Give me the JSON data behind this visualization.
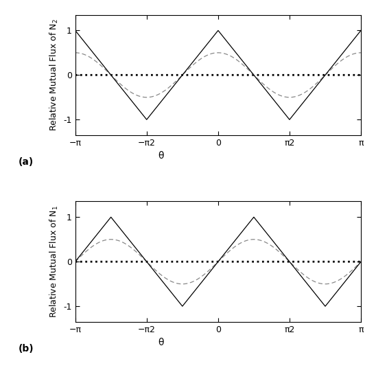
{
  "ylabel_a": "Relative Mutual Flux of N$_2$",
  "ylabel_b": "Relative Mutual Flux of N$_1$",
  "xlabel": "θ",
  "label_a": "(a)",
  "label_b": "(b)",
  "xlim": [
    -3.14159265,
    3.14159265
  ],
  "ylim": [
    -1.35,
    1.35
  ],
  "yticks": [
    -1,
    0,
    1
  ],
  "xticks": [
    -3.14159265,
    -1.5707963,
    0,
    1.5707963,
    3.14159265
  ],
  "xticklabels_a": [
    "−π",
    "−π2",
    "0",
    "π2",
    "π"
  ],
  "xticklabels_b": [
    "−π",
    "−π2",
    "0",
    "π2",
    "π"
  ],
  "line_color_solid": "#000000",
  "line_color_dashed": "#888888",
  "line_color_dotted": "#000000",
  "background_color": "#ffffff",
  "dpi": 100
}
